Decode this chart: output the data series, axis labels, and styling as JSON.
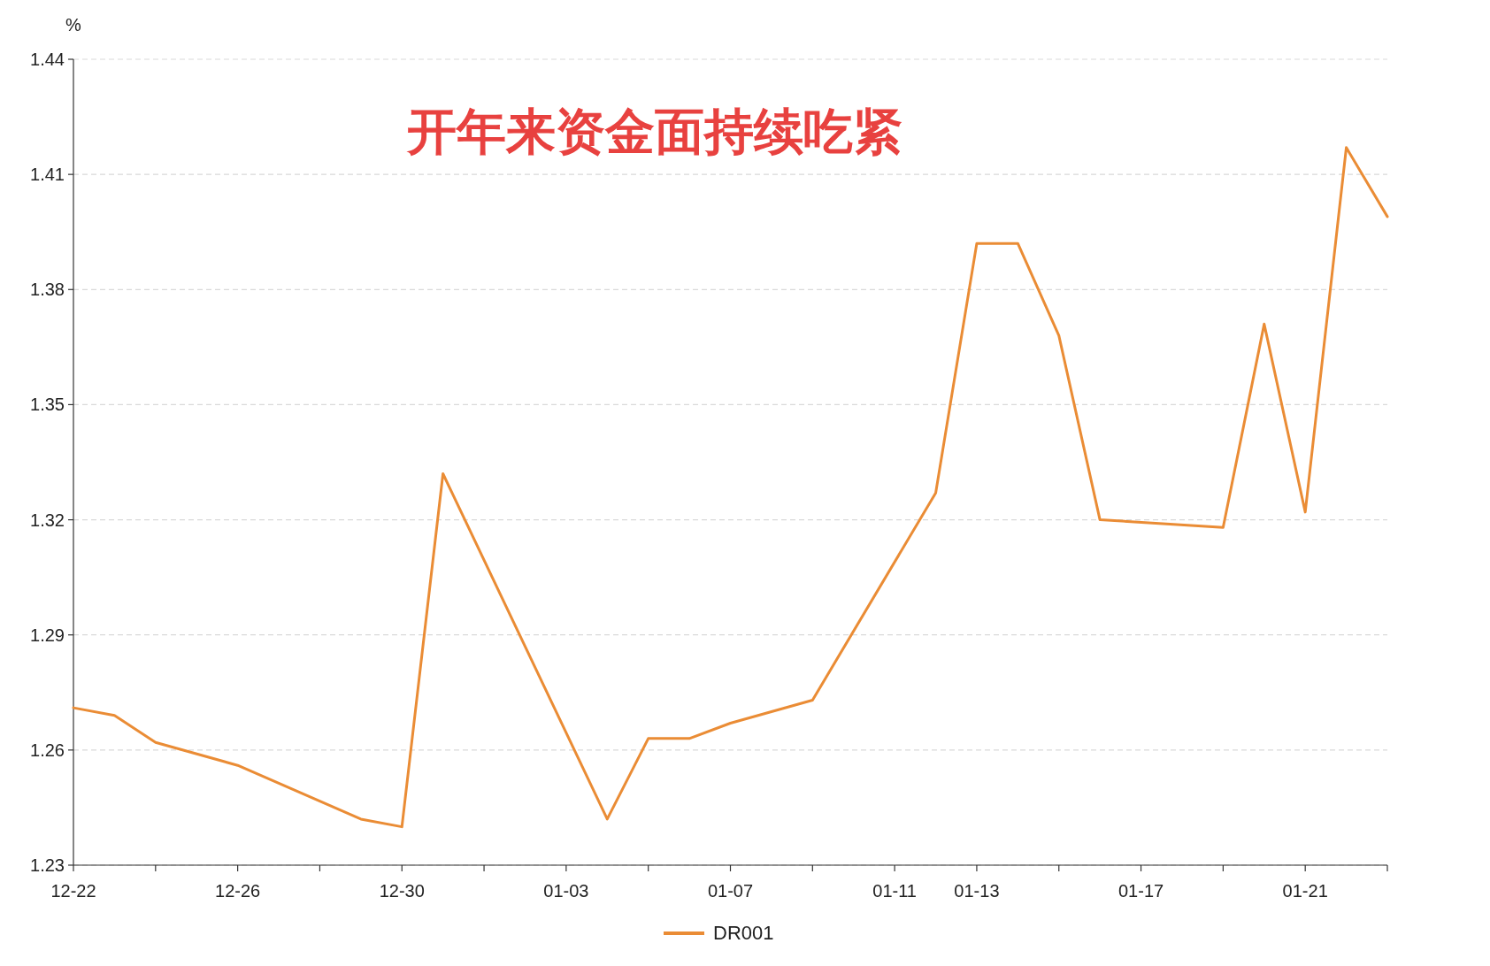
{
  "chart_data": {
    "type": "line",
    "title": "开年来资金面持续吃紧",
    "ylabel": "%",
    "categories": [
      "12-22",
      null,
      null,
      null,
      "12-26",
      null,
      null,
      null,
      "12-30",
      null,
      null,
      null,
      "01-03",
      null,
      null,
      null,
      "01-07",
      null,
      null,
      null,
      "01-11",
      null,
      "01-13",
      null,
      null,
      null,
      "01-17",
      null,
      null,
      null,
      "01-21",
      null,
      null
    ],
    "series": [
      {
        "name": "DR001",
        "color": "#ea8c35",
        "values": [
          1.271,
          1.269,
          1.262,
          null,
          1.256,
          null,
          null,
          1.242,
          1.24,
          1.332,
          null,
          null,
          null,
          1.242,
          1.263,
          1.263,
          1.267,
          1.27,
          1.273,
          null,
          null,
          1.327,
          1.392,
          1.392,
          1.368,
          1.32,
          null,
          null,
          1.318,
          1.371,
          1.322,
          1.417,
          1.399
        ]
      }
    ],
    "ylim": [
      1.23,
      1.44
    ],
    "yticks": [
      1.23,
      1.26,
      1.29,
      1.32,
      1.35,
      1.38,
      1.41,
      1.44
    ],
    "grid": "y",
    "legend": "bottom",
    "marker": "none",
    "line_style": "solid"
  }
}
